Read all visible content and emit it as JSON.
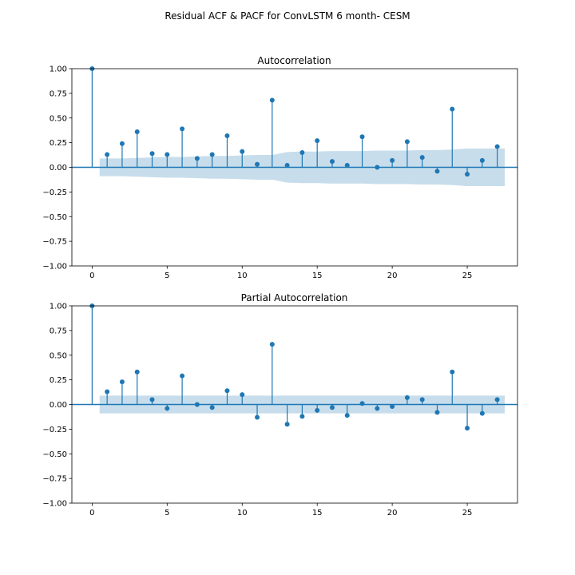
{
  "title": "Residual ACF & PACF for ConvLSTM 6 month- CESM",
  "colors": {
    "stem": "#1f77b4",
    "band": "#1f77b4",
    "axis": "#000000",
    "background": "#ffffff"
  },
  "chart_data": [
    {
      "type": "stem",
      "title": "Autocorrelation",
      "xlabel": "",
      "ylabel": "",
      "xlim": [
        -1.35,
        28.35
      ],
      "ylim": [
        -1.0,
        1.0
      ],
      "xticks": [
        0,
        5,
        10,
        15,
        20,
        25
      ],
      "yticks": [
        -1.0,
        -0.75,
        -0.5,
        -0.25,
        0.0,
        0.25,
        0.5,
        0.75,
        1.0
      ],
      "ytick_labels": [
        "−1.00",
        "−0.75",
        "−0.50",
        "−0.25",
        "0.00",
        "0.25",
        "0.50",
        "0.75",
        "1.00"
      ],
      "grid": false,
      "lags": [
        0,
        1,
        2,
        3,
        4,
        5,
        6,
        7,
        8,
        9,
        10,
        11,
        12,
        13,
        14,
        15,
        16,
        17,
        18,
        19,
        20,
        21,
        22,
        23,
        24,
        25,
        26,
        27
      ],
      "values": [
        1.0,
        0.13,
        0.24,
        0.36,
        0.14,
        0.13,
        0.39,
        0.09,
        0.13,
        0.32,
        0.16,
        0.03,
        0.68,
        0.02,
        0.15,
        0.27,
        0.06,
        0.02,
        0.31,
        0.0,
        0.07,
        0.26,
        0.1,
        -0.04,
        0.59,
        -0.07,
        0.07,
        0.21
      ],
      "confint_lags": [
        0.5,
        1,
        2,
        3,
        4,
        5,
        6,
        7,
        8,
        9,
        10,
        11,
        12,
        13,
        14,
        15,
        16,
        17,
        18,
        19,
        20,
        21,
        22,
        23,
        24,
        25,
        26,
        27,
        27.5
      ],
      "confint": [
        0.09,
        0.09,
        0.09,
        0.095,
        0.1,
        0.105,
        0.105,
        0.11,
        0.115,
        0.115,
        0.12,
        0.125,
        0.125,
        0.155,
        0.16,
        0.16,
        0.165,
        0.165,
        0.165,
        0.17,
        0.17,
        0.17,
        0.175,
        0.175,
        0.18,
        0.19,
        0.19,
        0.19,
        0.19
      ]
    },
    {
      "type": "stem",
      "title": "Partial Autocorrelation",
      "xlabel": "",
      "ylabel": "",
      "xlim": [
        -1.35,
        28.35
      ],
      "ylim": [
        -1.0,
        1.0
      ],
      "xticks": [
        0,
        5,
        10,
        15,
        20,
        25
      ],
      "yticks": [
        -1.0,
        -0.75,
        -0.5,
        -0.25,
        0.0,
        0.25,
        0.5,
        0.75,
        1.0
      ],
      "ytick_labels": [
        "−1.00",
        "−0.75",
        "−0.50",
        "−0.25",
        "0.00",
        "0.25",
        "0.50",
        "0.75",
        "1.00"
      ],
      "grid": false,
      "lags": [
        0,
        1,
        2,
        3,
        4,
        5,
        6,
        7,
        8,
        9,
        10,
        11,
        12,
        13,
        14,
        15,
        16,
        17,
        18,
        19,
        20,
        21,
        22,
        23,
        24,
        25,
        26,
        27
      ],
      "values": [
        1.0,
        0.13,
        0.23,
        0.33,
        0.05,
        -0.04,
        0.29,
        0.0,
        -0.03,
        0.14,
        0.1,
        -0.13,
        0.61,
        -0.2,
        -0.12,
        -0.06,
        -0.03,
        -0.11,
        0.01,
        -0.04,
        -0.02,
        0.07,
        0.05,
        -0.08,
        0.33,
        -0.24,
        -0.09,
        0.05
      ],
      "confint_lags": [
        0.5,
        27.5
      ],
      "confint": [
        0.09,
        0.09
      ]
    }
  ]
}
